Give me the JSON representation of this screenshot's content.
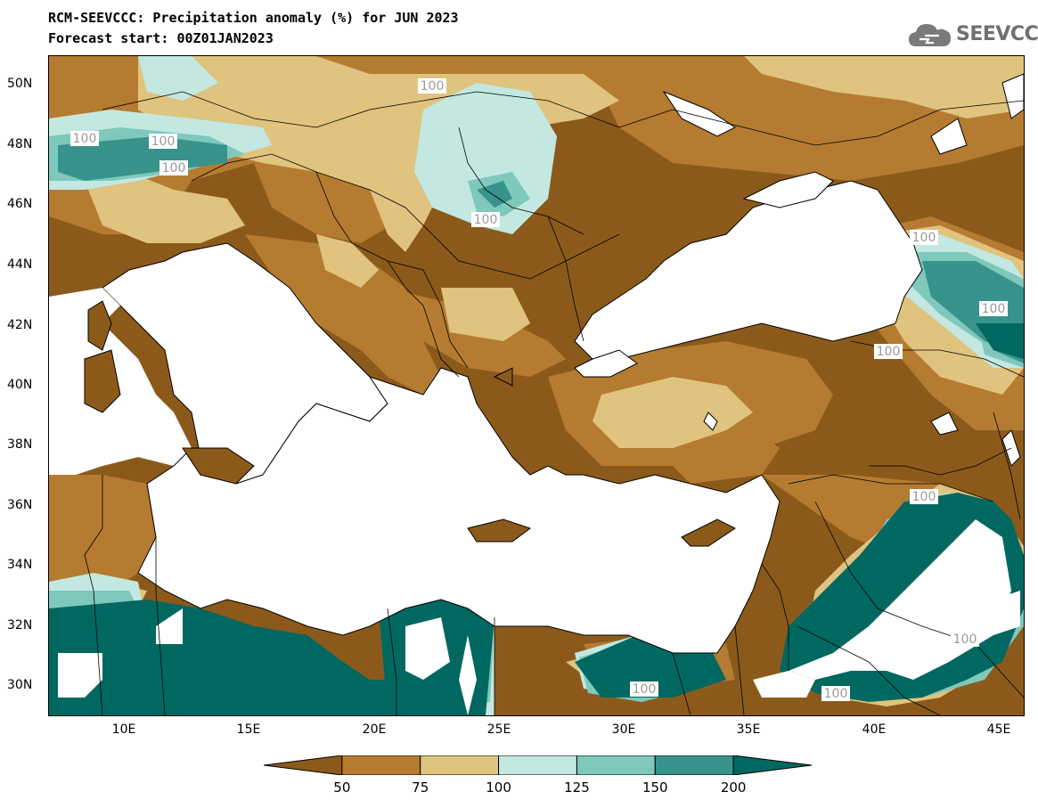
{
  "title_line1": "RCM-SEEVCCC: Precipitation anomaly (%) for JUN 2023",
  "title_line2": "Forecast start: 00Z01JAN2023",
  "logo_text": "SEEVCCC",
  "logo_icon": "cloud-icon",
  "latitude_labels": [
    "50N",
    "48N",
    "46N",
    "44N",
    "42N",
    "40N",
    "38N",
    "36N",
    "34N",
    "32N",
    "30N"
  ],
  "longitude_labels": [
    "10E",
    "15E",
    "20E",
    "25E",
    "30E",
    "35E",
    "40E",
    "45E"
  ],
  "contour_labels": [
    "100",
    "100",
    "100",
    "100",
    "100",
    "100",
    "100",
    "100",
    "100",
    "100",
    "100",
    "100"
  ],
  "colorbar": {
    "labels": [
      "50",
      "75",
      "100",
      "125",
      "150",
      "200"
    ],
    "colors": [
      "#8b5a1b",
      "#b57b31",
      "#dfc37f",
      "#c3e8e1",
      "#7ec8bc",
      "#37938b",
      "#006860"
    ]
  },
  "colors": {
    "land_default": "#8b5a1b",
    "sea": "#ffffff"
  }
}
